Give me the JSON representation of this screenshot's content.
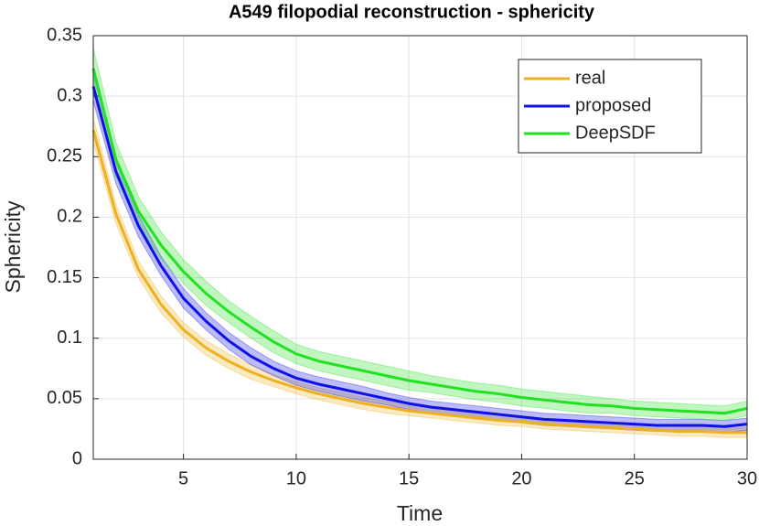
{
  "chart_data": {
    "type": "line",
    "title": "A549 filopodial reconstruction - sphericity",
    "x_label": "Time",
    "y_label": "Sphericity",
    "x": [
      1,
      2,
      3,
      4,
      5,
      6,
      7,
      8,
      9,
      10,
      11,
      12,
      13,
      14,
      15,
      16,
      17,
      18,
      19,
      20,
      21,
      22,
      23,
      24,
      25,
      26,
      27,
      28,
      29,
      30
    ],
    "series": [
      {
        "name": "real",
        "color": "#edb120",
        "values": [
          0.272,
          0.203,
          0.157,
          0.128,
          0.107,
          0.092,
          0.081,
          0.072,
          0.065,
          0.059,
          0.054,
          0.05,
          0.046,
          0.043,
          0.04,
          0.038,
          0.036,
          0.034,
          0.032,
          0.031,
          0.029,
          0.028,
          0.027,
          0.026,
          0.025,
          0.024,
          0.023,
          0.023,
          0.022,
          0.022
        ],
        "error": [
          0.01,
          0.008,
          0.007,
          0.007,
          0.006,
          0.006,
          0.006,
          0.006,
          0.005,
          0.005,
          0.005,
          0.005,
          0.005,
          0.005,
          0.004,
          0.004,
          0.004,
          0.004,
          0.004,
          0.004,
          0.004,
          0.004,
          0.004,
          0.004,
          0.004,
          0.004,
          0.004,
          0.004,
          0.004,
          0.004
        ]
      },
      {
        "name": "proposed",
        "color": "#1010e8",
        "values": [
          0.308,
          0.238,
          0.193,
          0.16,
          0.133,
          0.114,
          0.098,
          0.085,
          0.075,
          0.067,
          0.062,
          0.058,
          0.054,
          0.05,
          0.046,
          0.043,
          0.041,
          0.039,
          0.037,
          0.035,
          0.033,
          0.032,
          0.031,
          0.03,
          0.029,
          0.028,
          0.028,
          0.028,
          0.027,
          0.029
        ],
        "error": [
          0.012,
          0.01,
          0.009,
          0.008,
          0.008,
          0.007,
          0.007,
          0.007,
          0.006,
          0.006,
          0.006,
          0.006,
          0.006,
          0.005,
          0.005,
          0.005,
          0.005,
          0.005,
          0.005,
          0.005,
          0.005,
          0.005,
          0.005,
          0.005,
          0.005,
          0.005,
          0.005,
          0.005,
          0.005,
          0.005
        ]
      },
      {
        "name": "DeepSDF",
        "color": "#22e022",
        "values": [
          0.323,
          0.248,
          0.205,
          0.177,
          0.155,
          0.137,
          0.122,
          0.109,
          0.097,
          0.087,
          0.081,
          0.077,
          0.073,
          0.069,
          0.065,
          0.062,
          0.059,
          0.056,
          0.054,
          0.051,
          0.049,
          0.047,
          0.045,
          0.044,
          0.042,
          0.041,
          0.04,
          0.039,
          0.038,
          0.042
        ],
        "error": [
          0.017,
          0.014,
          0.012,
          0.011,
          0.01,
          0.01,
          0.009,
          0.009,
          0.009,
          0.008,
          0.008,
          0.008,
          0.008,
          0.008,
          0.008,
          0.007,
          0.007,
          0.007,
          0.007,
          0.007,
          0.007,
          0.007,
          0.007,
          0.006,
          0.006,
          0.006,
          0.006,
          0.006,
          0.006,
          0.006
        ]
      }
    ],
    "xlim": [
      1,
      30
    ],
    "xticks": [
      5,
      10,
      15,
      20,
      25,
      30
    ],
    "ylim": [
      0,
      0.35
    ],
    "yticks": [
      0,
      0.05,
      0.1,
      0.15,
      0.2,
      0.25,
      0.3,
      0.35
    ],
    "grid": true,
    "legend": "upper right"
  }
}
